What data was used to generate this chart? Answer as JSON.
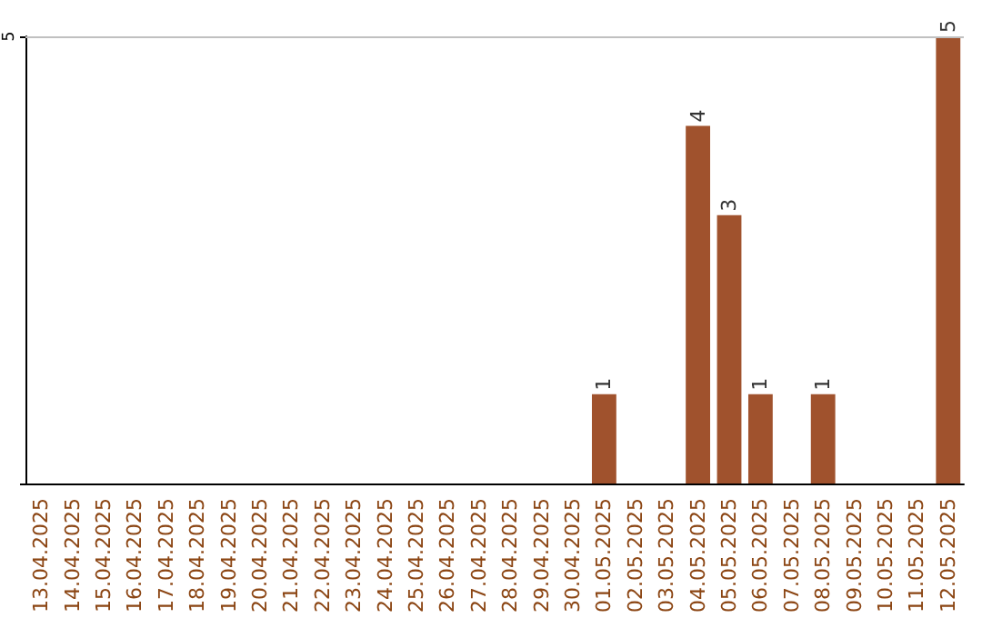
{
  "chart_data": {
    "type": "bar",
    "categories": [
      "13.04.2025",
      "14.04.2025",
      "15.04.2025",
      "16.04.2025",
      "17.04.2025",
      "18.04.2025",
      "19.04.2025",
      "20.04.2025",
      "21.04.2025",
      "22.04.2025",
      "23.04.2025",
      "24.04.2025",
      "25.04.2025",
      "26.04.2025",
      "27.04.2025",
      "28.04.2025",
      "29.04.2025",
      "30.04.2025",
      "01.05.2025",
      "02.05.2025",
      "03.05.2025",
      "04.05.2025",
      "05.05.2025",
      "06.05.2025",
      "07.05.2025",
      "08.05.2025",
      "09.05.2025",
      "10.05.2025",
      "11.05.2025",
      "12.05.2025"
    ],
    "values": [
      null,
      null,
      null,
      null,
      null,
      null,
      null,
      null,
      null,
      null,
      null,
      null,
      null,
      null,
      null,
      null,
      null,
      null,
      1,
      null,
      null,
      4,
      3,
      1,
      null,
      1,
      null,
      null,
      null,
      5
    ],
    "value_labels": [
      null,
      null,
      null,
      null,
      null,
      null,
      null,
      null,
      null,
      null,
      null,
      null,
      null,
      null,
      null,
      null,
      null,
      null,
      "1",
      null,
      null,
      "4",
      "3",
      "1",
      null,
      "1",
      null,
      null,
      null,
      "5"
    ],
    "color": "#a0522d",
    "ylim": [
      0,
      5
    ],
    "yticks": [
      {
        "value": 0,
        "label": null
      },
      5
    ],
    "ref_lines": [
      {
        "axis": "y",
        "value": 5,
        "color": "#c0c0c0"
      }
    ]
  }
}
